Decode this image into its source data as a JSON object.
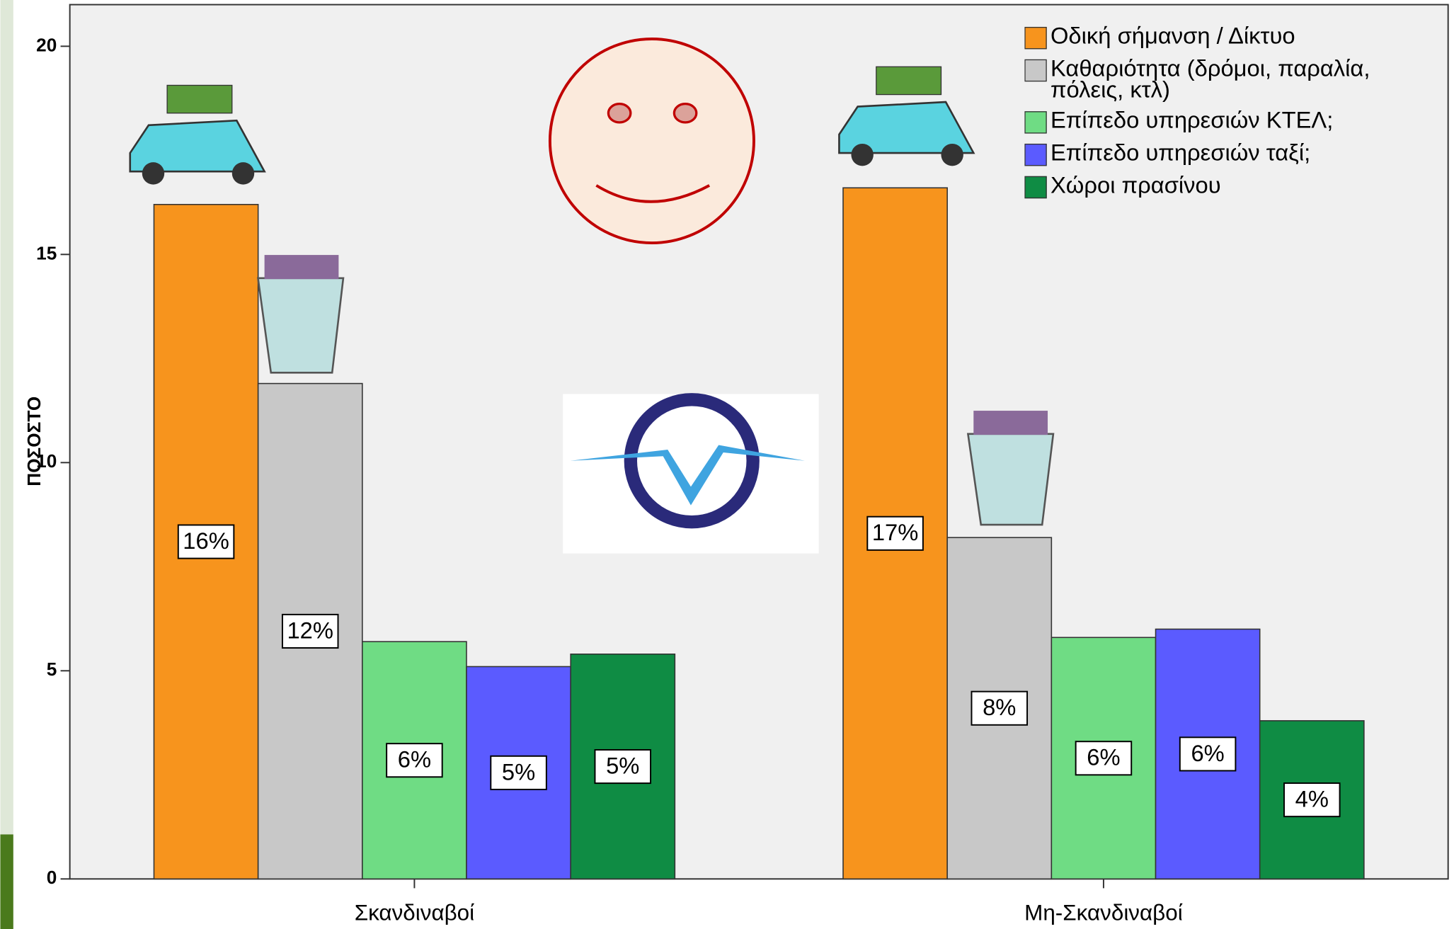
{
  "chart_data": {
    "type": "bar",
    "ylabel": "ΠΟΣΟΣΤΟ",
    "categories": [
      "Σκανδιναβοί",
      "Μη-Σκανδιναβοί"
    ],
    "series": [
      {
        "name": "Οδική σήμανση / Δίκτυο",
        "color": "#f7941d",
        "values": [
          16.2,
          16.6
        ],
        "value_labels": [
          "16%",
          "17%"
        ]
      },
      {
        "name": "Καθαριότητα (δρόμοι, παραλία, πόλεις, κτλ)",
        "color": "#c8c8c8",
        "values": [
          11.9,
          8.2
        ],
        "value_labels": [
          "12%",
          "8%"
        ]
      },
      {
        "name": "Επίπεδο υπηρεσιών ΚΤΕΛ;",
        "color": "#6fdc84",
        "values": [
          5.7,
          5.8
        ],
        "value_labels": [
          "6%",
          "6%"
        ]
      },
      {
        "name": "Επίπεδο υπηρεσιών ταξί;",
        "color": "#5b5bff",
        "values": [
          5.1,
          6.0
        ],
        "value_labels": [
          "5%",
          "6%"
        ]
      },
      {
        "name": "Χώροι πρασίνου",
        "color": "#0f8c44",
        "values": [
          5.4,
          3.8
        ],
        "value_labels": [
          "5%",
          "4%"
        ]
      }
    ],
    "ylim": [
      0,
      21
    ],
    "yticks": [
      0,
      5,
      10,
      15,
      20
    ],
    "legend": "upper right"
  }
}
